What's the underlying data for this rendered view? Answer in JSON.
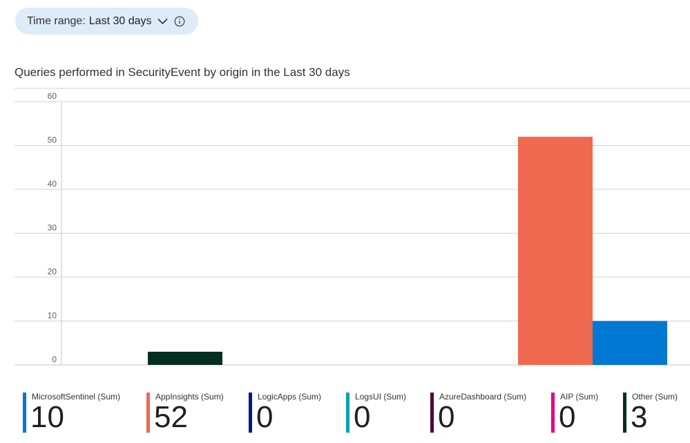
{
  "time_range": {
    "label": "Time range:",
    "value": "Last 30 days",
    "chevron_icon": "chevron-down-icon",
    "info_icon": "info-icon"
  },
  "chart_data": {
    "type": "bar",
    "title": "Queries performed in SecurityEvent by origin in the Last 30 days",
    "xlabel": "",
    "ylabel": "",
    "ylim": [
      0,
      60
    ],
    "yticks": [
      0,
      10,
      20,
      30,
      40,
      50,
      60
    ],
    "grid": true,
    "legend_placement": "bottom",
    "series": [
      {
        "name": "MicrosoftSentinel (Sum)",
        "color": "#0078d4",
        "total": "10"
      },
      {
        "name": "AppInsights (Sum)",
        "color": "#ef6950",
        "total": "52"
      },
      {
        "name": "LogicApps (Sum)",
        "color": "#00188f",
        "total": "0"
      },
      {
        "name": "LogsUI (Sum)",
        "color": "#00a2ad",
        "total": "0"
      },
      {
        "name": "AzureDashboard (Sum)",
        "color": "#4b003f",
        "total": "0"
      },
      {
        "name": "AIP (Sum)",
        "color": "#e3008c",
        "total": "0"
      },
      {
        "name": "Other (Sum)",
        "color": "#022f22",
        "total": "3"
      }
    ],
    "bars": [
      {
        "series": "Other (Sum)",
        "group": 0,
        "value": 3
      },
      {
        "series": "AppInsights (Sum)",
        "group": 1,
        "value": 52
      },
      {
        "series": "MicrosoftSentinel (Sum)",
        "group": 1,
        "value": 10
      }
    ]
  }
}
